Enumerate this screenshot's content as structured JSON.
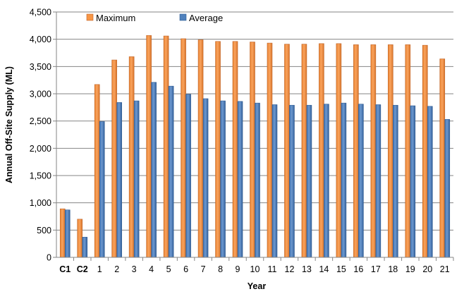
{
  "chart_data": {
    "type": "bar",
    "categories": [
      "C1",
      "C2",
      "1",
      "2",
      "3",
      "4",
      "5",
      "6",
      "7",
      "8",
      "9",
      "10",
      "11",
      "12",
      "13",
      "14",
      "15",
      "16",
      "17",
      "18",
      "19",
      "20",
      "21"
    ],
    "series": [
      {
        "name": "Maximum",
        "color": "#F79646",
        "values": [
          890,
          700,
          3170,
          3620,
          3680,
          4070,
          4060,
          4010,
          3990,
          3960,
          3960,
          3950,
          3930,
          3910,
          3910,
          3920,
          3920,
          3900,
          3900,
          3900,
          3900,
          3890,
          3640
        ]
      },
      {
        "name": "Average",
        "color": "#4F81BD",
        "values": [
          870,
          370,
          2490,
          2840,
          2870,
          3210,
          3140,
          2990,
          2910,
          2870,
          2860,
          2830,
          2800,
          2790,
          2790,
          2810,
          2830,
          2810,
          2800,
          2790,
          2780,
          2770,
          2530
        ]
      }
    ],
    "title": "",
    "xlabel": "Year",
    "ylabel": "Annual Off-Site Supply (ML)",
    "ylim": [
      0,
      4500
    ],
    "yticks": [
      0,
      500,
      1000,
      1500,
      2000,
      2500,
      3000,
      3500,
      4000,
      4500
    ],
    "ytick_labels": [
      "0",
      "500",
      "1,000",
      "1,500",
      "2,000",
      "2,500",
      "3,000",
      "3,500",
      "4,000",
      "4,500"
    ],
    "bold_categories": [
      "C1",
      "C2"
    ],
    "grid": true,
    "legend": "top-left",
    "gridline_color": "#868686"
  }
}
